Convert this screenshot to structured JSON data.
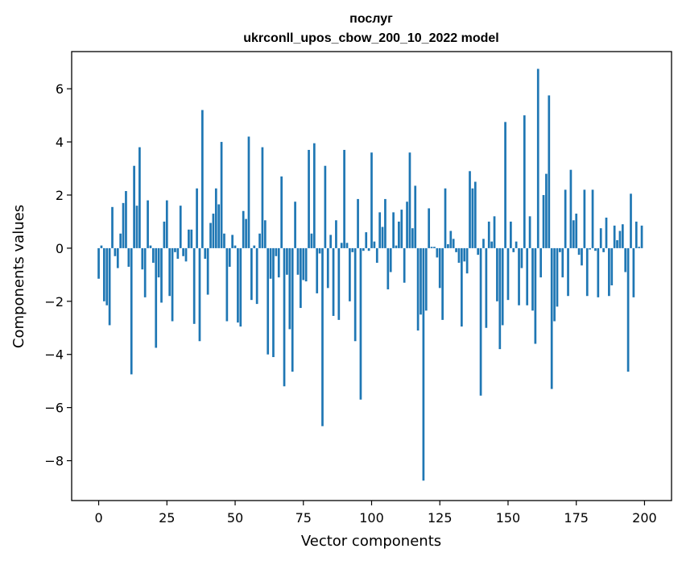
{
  "chart_data": {
    "type": "bar",
    "title": "послуг",
    "subtitle": "ukrconll_upos_cbow_200_10_2022 model",
    "xlabel": "Vector components",
    "ylabel": "Components values",
    "xlim": [
      -9.9,
      209.9
    ],
    "ylim": [
      -9.5,
      7.4
    ],
    "xticks": [
      0,
      25,
      50,
      75,
      100,
      125,
      150,
      175,
      200
    ],
    "xtick_labels": [
      "0",
      "25",
      "50",
      "75",
      "100",
      "125",
      "150",
      "175",
      "200"
    ],
    "yticks": [
      -8,
      -6,
      -4,
      -2,
      0,
      2,
      4,
      6
    ],
    "ytick_labels": [
      "−8",
      "−6",
      "−4",
      "−2",
      "0",
      "2",
      "4",
      "6"
    ],
    "grid": false,
    "bar_color": "#1f77b4",
    "series": [
      {
        "x": [
          0,
          1,
          2,
          3,
          4,
          5,
          6,
          7,
          8,
          9,
          10,
          11,
          12,
          13,
          14,
          15,
          16,
          17,
          18,
          19,
          20,
          21,
          22,
          23,
          24,
          25,
          26,
          27,
          28,
          29,
          30,
          31,
          32,
          33,
          34,
          35,
          36,
          37,
          38,
          39,
          40,
          41,
          42,
          43,
          44,
          45,
          46,
          47,
          48,
          49,
          50,
          51,
          52,
          53,
          54,
          55,
          56,
          57,
          58,
          59,
          60,
          61,
          62,
          63,
          64,
          65,
          66,
          67,
          68,
          69,
          70,
          71,
          72,
          73,
          74,
          75,
          76,
          77,
          78,
          79,
          80,
          81,
          82,
          83,
          84,
          85,
          86,
          87,
          88,
          89,
          90,
          91,
          92,
          93,
          94,
          95,
          96,
          97,
          98,
          99,
          100,
          101,
          102,
          103,
          104,
          105,
          106,
          107,
          108,
          109,
          110,
          111,
          112,
          113,
          114,
          115,
          116,
          117,
          118,
          119,
          120,
          121,
          122,
          123,
          124,
          125,
          126,
          127,
          128,
          129,
          130,
          131,
          132,
          133,
          134,
          135,
          136,
          137,
          138,
          139,
          140,
          141,
          142,
          143,
          144,
          145,
          146,
          147,
          148,
          149,
          150,
          151,
          152,
          153,
          154,
          155,
          156,
          157,
          158,
          159,
          160,
          161,
          162,
          163,
          164,
          165,
          166,
          167,
          168,
          169,
          170,
          171,
          172,
          173,
          174,
          175,
          176,
          177,
          178,
          179,
          180,
          181,
          182,
          183,
          184,
          185,
          186,
          187,
          188,
          189,
          190,
          191,
          192,
          193,
          194,
          195,
          196,
          197,
          198,
          199
        ],
        "values": [
          -1.15,
          0.1,
          -2.0,
          -2.15,
          -2.9,
          1.55,
          -0.3,
          -0.75,
          0.55,
          1.7,
          2.15,
          -0.7,
          -4.75,
          3.1,
          1.6,
          3.8,
          -0.8,
          -1.85,
          1.8,
          0.1,
          -0.55,
          -3.75,
          -1.1,
          -2.05,
          1.0,
          1.8,
          -1.8,
          -2.75,
          -0.15,
          -0.4,
          1.6,
          -0.3,
          -0.5,
          0.7,
          0.7,
          -2.85,
          2.25,
          -3.5,
          5.2,
          -0.4,
          -1.75,
          0.95,
          1.3,
          2.25,
          1.65,
          4.0,
          0.55,
          -2.75,
          -0.7,
          0.5,
          0.1,
          -2.8,
          -2.95,
          1.4,
          1.1,
          4.2,
          -1.95,
          0.1,
          -2.1,
          0.55,
          3.8,
          1.05,
          -4.0,
          -1.15,
          -4.1,
          -0.3,
          -1.1,
          2.7,
          -5.2,
          -1.0,
          -3.05,
          -4.65,
          1.75,
          -1.0,
          -2.25,
          -1.2,
          -1.25,
          3.7,
          0.55,
          3.95,
          -1.7,
          -0.2,
          -6.7,
          3.1,
          -1.5,
          0.5,
          -2.55,
          1.05,
          -2.7,
          0.2,
          3.7,
          0.2,
          -2.0,
          -0.15,
          -3.5,
          1.85,
          -5.7,
          -0.1,
          0.6,
          -0.1,
          3.6,
          0.25,
          -0.55,
          1.35,
          0.8,
          1.85,
          -1.55,
          -0.9,
          1.35,
          0.1,
          1.0,
          1.45,
          -1.3,
          1.75,
          3.6,
          0.75,
          2.35,
          -3.1,
          -2.5,
          -8.75,
          -2.35,
          1.5,
          0.05,
          0.05,
          -0.35,
          -1.5,
          -2.7,
          2.25,
          0.15,
          0.65,
          0.35,
          -0.15,
          -0.55,
          -2.95,
          -0.5,
          -0.95,
          2.9,
          2.25,
          2.5,
          -0.25,
          -5.55,
          0.35,
          -3.0,
          1.0,
          0.25,
          1.2,
          -2.0,
          -3.8,
          -2.9,
          4.75,
          -1.95,
          1.0,
          -0.15,
          0.25,
          -2.15,
          -0.75,
          5.0,
          -2.15,
          1.2,
          -2.35,
          -3.6,
          6.75,
          -1.1,
          2.0,
          2.8,
          5.75,
          -5.3,
          -2.75,
          -2.2,
          -0.15,
          -1.1,
          2.2,
          -1.8,
          2.95,
          1.05,
          1.3,
          -0.25,
          -0.65,
          2.2,
          -1.8,
          -0.05,
          2.2,
          -0.1,
          -1.85,
          0.75,
          -0.15,
          1.15,
          -1.8,
          -1.4,
          0.85,
          0.3,
          0.65,
          0.9,
          -0.9,
          -4.65,
          2.05,
          -1.85,
          1.0,
          0.05,
          0.85
        ]
      }
    ]
  }
}
